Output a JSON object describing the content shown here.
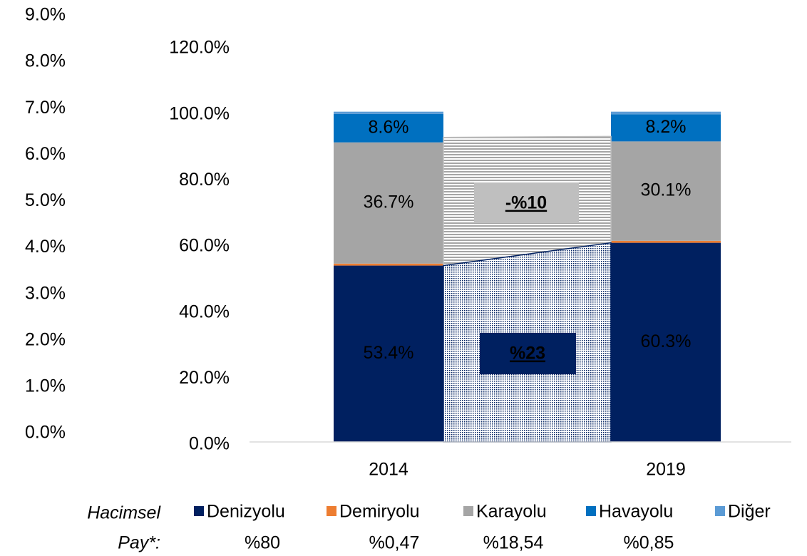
{
  "chart_data": {
    "type": "stacked_bar",
    "categories": [
      "2014",
      "2019"
    ],
    "series": [
      {
        "name": "Denizyolu",
        "color": "#002060",
        "axis": "y2",
        "values": [
          53.4,
          60.3
        ],
        "value_labels": [
          "53.4%",
          "60.3%"
        ]
      },
      {
        "name": "Demiryolu",
        "color": "#ed7d31",
        "axis": "y2",
        "values": [
          0.6,
          0.6
        ]
      },
      {
        "name": "Karayolu",
        "color": "#a5a5a5",
        "axis": "y2",
        "values": [
          36.7,
          30.1
        ],
        "value_labels": [
          "36.7%",
          "30.1%"
        ]
      },
      {
        "name": "Havayolu",
        "color": "#0070c0",
        "axis": "y2",
        "values": [
          8.6,
          8.2
        ],
        "value_labels": [
          "8.6%",
          "8.2%"
        ]
      },
      {
        "name": "Diğer",
        "color": "#5b9bd5",
        "axis": "y2",
        "values": [
          0.7,
          0.8
        ]
      }
    ],
    "ylim": [
      0,
      9
    ],
    "yticks": [
      {
        "value": 0,
        "label": "0.0%"
      },
      {
        "value": 1,
        "label": "1.0%"
      },
      {
        "value": 2,
        "label": "2.0%"
      },
      {
        "value": 3,
        "label": "3.0%"
      },
      {
        "value": 4,
        "label": "4.0%"
      },
      {
        "value": 5,
        "label": "5.0%"
      },
      {
        "value": 6,
        "label": "6.0%"
      },
      {
        "value": 7,
        "label": "7.0%"
      },
      {
        "value": 8,
        "label": "8.0%"
      },
      {
        "value": 9,
        "label": "9.0%"
      }
    ],
    "y2lim": [
      0,
      120
    ],
    "y2ticks": [
      {
        "value": 0,
        "label": "0.0%"
      },
      {
        "value": 20,
        "label": "20.0%"
      },
      {
        "value": 40,
        "label": "40.0%"
      },
      {
        "value": 60,
        "label": "60.0%"
      },
      {
        "value": 80,
        "label": "80.0%"
      },
      {
        "value": 100,
        "label": "100.0%"
      },
      {
        "value": 120,
        "label": "120.0%"
      }
    ],
    "annotations": [
      "-%10",
      "%23"
    ],
    "share_label": [
      "Hacimsel",
      "Pay*:"
    ],
    "share_values": [
      "%80",
      "%0,47",
      "%18,54",
      "%0,85"
    ]
  }
}
